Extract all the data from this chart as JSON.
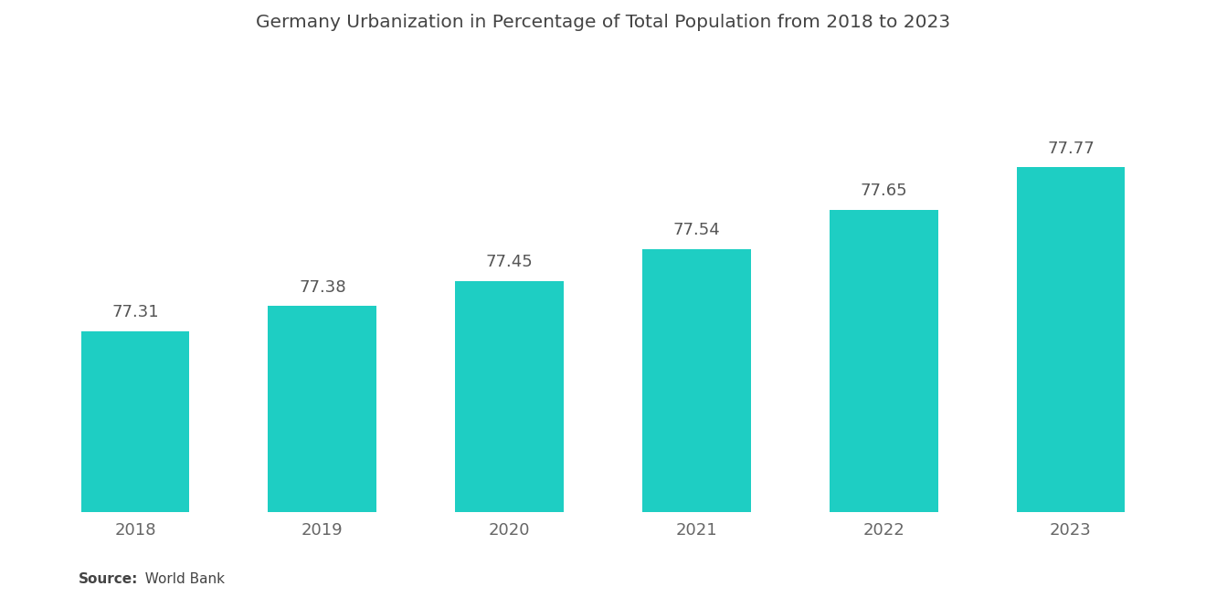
{
  "title": "Germany Urbanization in Percentage of Total Population from 2018 to 2023",
  "categories": [
    "2018",
    "2019",
    "2020",
    "2021",
    "2022",
    "2023"
  ],
  "values": [
    77.31,
    77.38,
    77.45,
    77.54,
    77.65,
    77.77
  ],
  "bar_color": "#1ECEC3",
  "background_color": "#ffffff",
  "title_fontsize": 14.5,
  "tick_fontsize": 13,
  "value_fontsize": 13,
  "source_bold": "Source:",
  "source_normal": "  World Bank",
  "source_fontsize": 11,
  "ylim_min": 76.8,
  "ylim_max": 78.1,
  "bar_width": 0.58,
  "value_color": "#555555",
  "tick_color": "#666666",
  "title_color": "#444444"
}
